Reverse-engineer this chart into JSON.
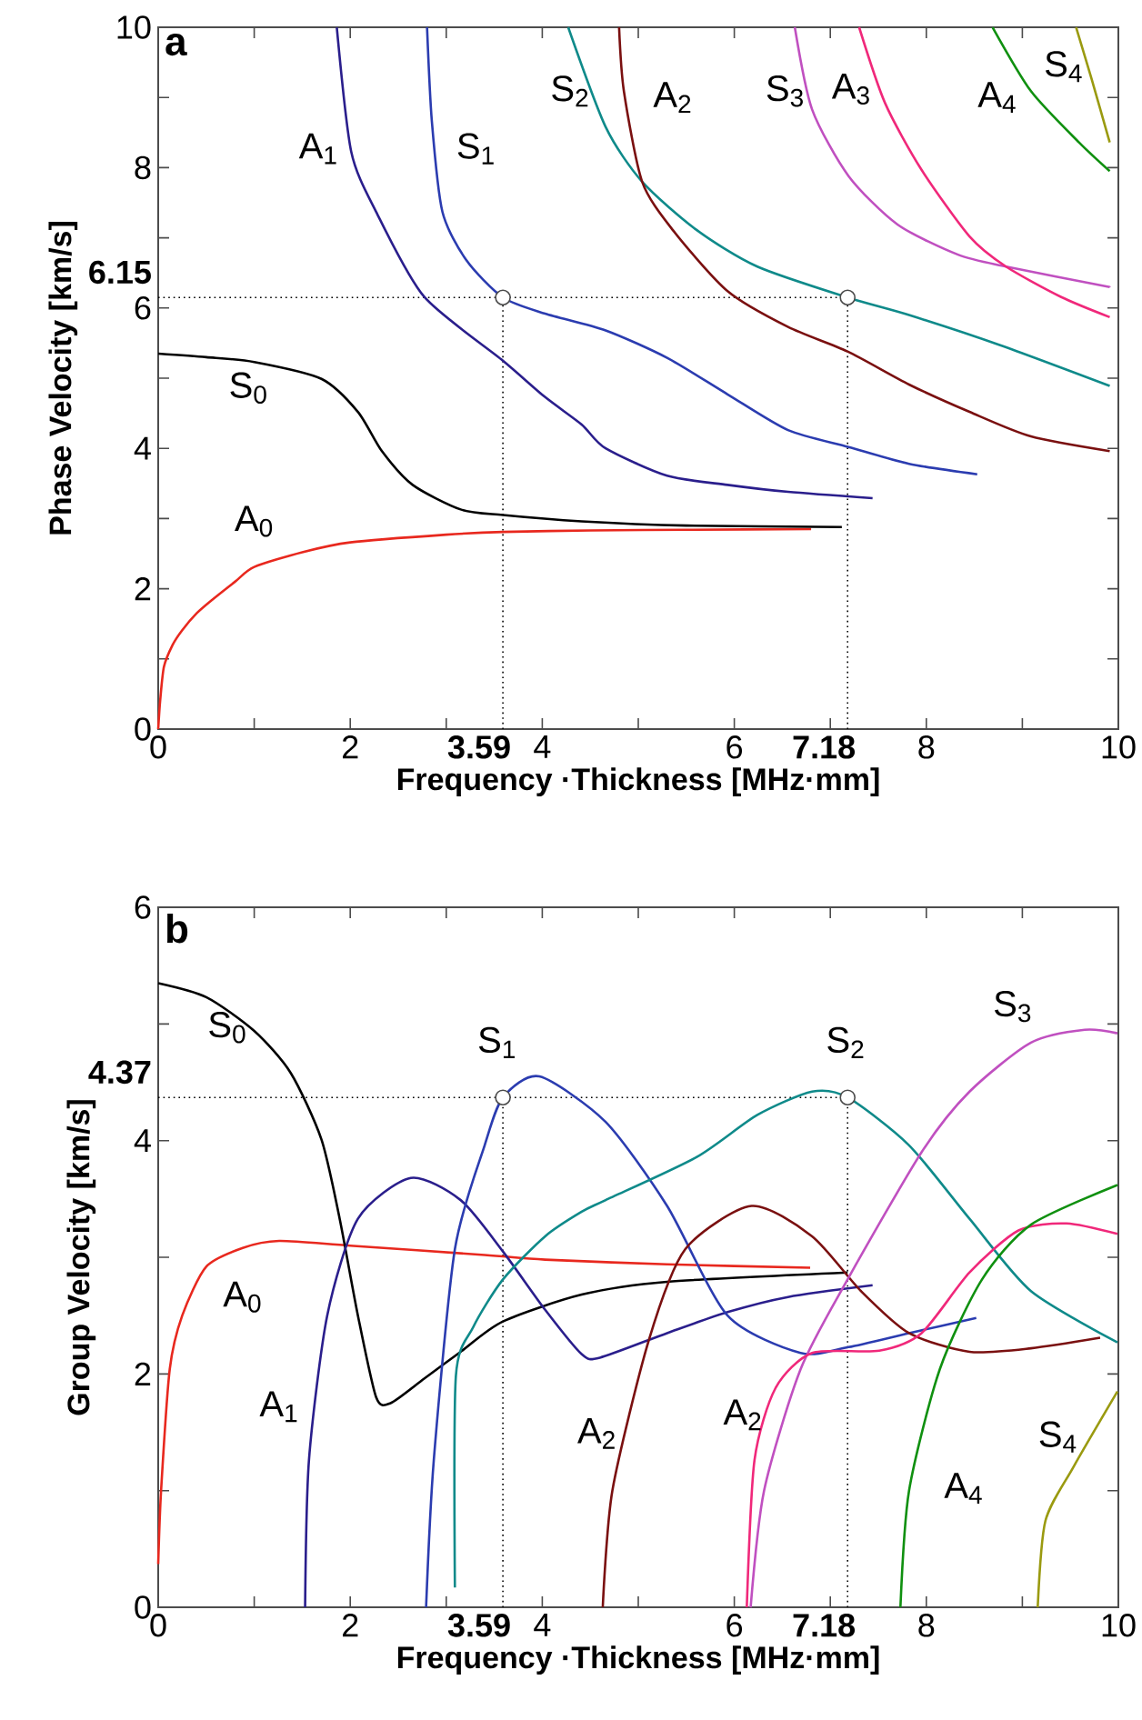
{
  "chart_data": [
    {
      "type": "line",
      "title": "a",
      "xlabel": "Frequency ·Thickness [MHz·mm]",
      "ylabel": "Phase Velocity [km/s]",
      "xlim": [
        0,
        10
      ],
      "ylim": [
        0,
        10
      ],
      "xticks": [
        0,
        {
          "value": 1,
          "label": null
        },
        2,
        {
          "value": 3,
          "label": null
        },
        4,
        {
          "value": 5,
          "label": null
        },
        6,
        {
          "value": 7,
          "label": null
        },
        8,
        {
          "value": 9,
          "label": null
        },
        10
      ],
      "yticks": [
        0,
        {
          "value": 1,
          "label": null
        },
        2,
        {
          "value": 3,
          "label": null
        },
        4,
        {
          "value": 5,
          "label": null
        },
        6,
        {
          "value": 7,
          "label": null
        },
        8,
        {
          "value": 9,
          "label": null
        },
        10
      ],
      "ref_lines": [
        {
          "axis": "x",
          "value": 3.59,
          "label": "3.59",
          "line_style": "dotted",
          "color": "#000000"
        },
        {
          "axis": "x",
          "value": 7.18,
          "label": "7.18",
          "line_style": "dotted",
          "color": "#000000"
        },
        {
          "axis": "y",
          "value": 6.15,
          "label": "6.15",
          "line_style": "dotted",
          "color": "#000000"
        }
      ],
      "series": [
        {
          "name": "A$_{0}$",
          "color": "#e8281e",
          "x": [
            0,
            0.02,
            0.06,
            0.15,
            0.25,
            0.4,
            0.56,
            0.8,
            1.0,
            1.5,
            2,
            3,
            3.59,
            4.5,
            5.5,
            6.8
          ],
          "values": [
            0,
            0.4,
            0.89,
            1.2,
            1.41,
            1.65,
            1.84,
            2.1,
            2.31,
            2.52,
            2.66,
            2.77,
            2.81,
            2.83,
            2.84,
            2.85
          ]
        },
        {
          "name": "S$_{0}$",
          "color": "#000000",
          "x": [
            0,
            0.5,
            1.0,
            1.7,
            2.08,
            2.33,
            2.65,
            3.15,
            3.59,
            4.41,
            5.5,
            7.12
          ],
          "values": [
            5.35,
            5.3,
            5.23,
            4.99,
            4.52,
            3.96,
            3.48,
            3.13,
            3.05,
            2.96,
            2.9,
            2.88
          ]
        },
        {
          "name": "A$_{1}$",
          "color": "#2a1e8c",
          "x": [
            1.86,
            2.01,
            2.27,
            2.77,
            3.59,
            4.03,
            4.41,
            4.66,
            5.3,
            5.93,
            6.56,
            7.44
          ],
          "values": [
            10,
            8.23,
            7.37,
            6.16,
            5.25,
            4.73,
            4.34,
            4.0,
            3.61,
            3.48,
            3.38,
            3.29
          ]
        },
        {
          "name": "S$_{1}$",
          "color": "#2b3cb0",
          "x": [
            2.8,
            2.85,
            2.96,
            3.21,
            3.59,
            4.03,
            4.66,
            5.3,
            5.93,
            6.56,
            7.19,
            7.82,
            8.53
          ],
          "values": [
            10,
            8.66,
            7.37,
            6.68,
            6.15,
            5.92,
            5.68,
            5.29,
            4.77,
            4.26,
            4.02,
            3.78,
            3.63
          ]
        },
        {
          "name": "S$_{2}$",
          "color": "#0f8a8a",
          "x": [
            4.27,
            4.66,
            5.04,
            5.61,
            6.24,
            7.18,
            7.82,
            8.77,
            9.91
          ],
          "values": [
            10,
            8.58,
            7.8,
            7.11,
            6.59,
            6.15,
            5.9,
            5.47,
            4.89
          ]
        },
        {
          "name": "A$_{2}$",
          "color": "#7a1010",
          "x": [
            4.8,
            4.85,
            5.04,
            5.36,
            5.93,
            6.56,
            7.18,
            7.82,
            8.45,
            9.09,
            9.91
          ],
          "values": [
            10,
            9.09,
            7.8,
            7.11,
            6.24,
            5.73,
            5.38,
            4.91,
            4.52,
            4.17,
            3.96
          ]
        },
        {
          "name": "S$_{3}$",
          "color": "#c050c0",
          "x": [
            6.63,
            6.81,
            7.19,
            7.7,
            8.33,
            8.83,
            9.91
          ],
          "values": [
            10,
            8.83,
            7.88,
            7.19,
            6.76,
            6.59,
            6.3
          ]
        },
        {
          "name": "A$_{3}$",
          "color": "#f0287a",
          "x": [
            7.3,
            7.57,
            7.95,
            8.45,
            8.83,
            9.4,
            9.91
          ],
          "values": [
            10,
            8.92,
            7.97,
            7.02,
            6.59,
            6.16,
            5.87
          ]
        },
        {
          "name": "A$_{4}$",
          "color": "#109010",
          "x": [
            8.69,
            9.09,
            9.59,
            9.91
          ],
          "values": [
            10,
            9.09,
            8.36,
            7.95
          ]
        },
        {
          "name": "S$_{4}$",
          "color": "#9a9a10",
          "x": [
            9.56,
            9.72,
            9.91
          ],
          "values": [
            10,
            9.27,
            8.36
          ]
        },
        {
          "type": "scatter",
          "marker": "circle",
          "color": "#ffffff",
          "x": [
            3.59,
            7.18
          ],
          "values": [
            6.15,
            6.15
          ]
        }
      ]
    },
    {
      "type": "line",
      "title": "b",
      "xlabel": "Frequency ·Thickness [MHz·mm]",
      "ylabel": "Group Velocity [km/s]",
      "xlim": [
        0,
        10
      ],
      "ylim": [
        0,
        6
      ],
      "xticks": [
        0,
        {
          "value": 1,
          "label": null
        },
        2,
        {
          "value": 3,
          "label": null
        },
        4,
        {
          "value": 5,
          "label": null
        },
        6,
        {
          "value": 7,
          "label": null
        },
        8,
        {
          "value": 9,
          "label": null
        },
        10
      ],
      "yticks": [
        0,
        {
          "value": 1,
          "label": null
        },
        2,
        {
          "value": 3,
          "label": null
        },
        4,
        {
          "value": 5,
          "label": null
        },
        6
      ],
      "ref_lines": [
        {
          "axis": "x",
          "value": 3.59,
          "label": "3.59",
          "line_style": "dotted",
          "color": "#000000"
        },
        {
          "axis": "x",
          "value": 7.18,
          "label": "7.18",
          "line_style": "dotted",
          "color": "#000000"
        },
        {
          "axis": "y",
          "value": 4.37,
          "label": "4.37",
          "line_style": "dotted",
          "color": "#000000"
        }
      ],
      "series": [
        {
          "name": "A$_{0}$",
          "color": "#e8281e",
          "x": [
            0,
            0.03,
            0.12,
            0.25,
            0.5,
            0.88,
            1.26,
            2.0,
            3.4,
            4.03,
            5.3,
            6.79
          ],
          "values": [
            0.37,
            1.0,
            2.04,
            2.5,
            2.92,
            3.08,
            3.14,
            3.1,
            3.02,
            2.98,
            2.94,
            2.91
          ]
        },
        {
          "name": "S$_{0}$",
          "color": "#000000",
          "x": [
            0,
            0.5,
            1.0,
            1.38,
            1.7,
            1.89,
            2.08,
            2.27,
            2.42,
            2.77,
            3.15,
            3.59,
            4.41,
            5.3,
            7.18
          ],
          "values": [
            5.35,
            5.23,
            4.94,
            4.58,
            4.01,
            3.33,
            2.5,
            1.8,
            1.75,
            1.96,
            2.19,
            2.45,
            2.68,
            2.79,
            2.87
          ]
        },
        {
          "name": "A$_{1}$",
          "color": "#2a1e8c",
          "x": [
            1.53,
            1.57,
            1.76,
            2.08,
            2.63,
            3.15,
            3.59,
            4.03,
            4.41,
            4.6,
            5.3,
            5.93,
            6.56,
            7.44
          ],
          "values": [
            0,
            1.26,
            2.5,
            3.33,
            3.68,
            3.49,
            3.05,
            2.55,
            2.17,
            2.14,
            2.35,
            2.53,
            2.66,
            2.76
          ]
        },
        {
          "name": "S$_{1}$",
          "color": "#2b3cb0",
          "x": [
            2.79,
            2.87,
            3.09,
            3.4,
            3.59,
            3.97,
            4.66,
            5.3,
            5.93,
            6.69,
            7.19,
            7.82,
            8.52
          ],
          "values": [
            0,
            1.26,
            3.07,
            3.96,
            4.37,
            4.55,
            4.16,
            3.44,
            2.5,
            2.18,
            2.23,
            2.35,
            2.48
          ]
        },
        {
          "name": "S$_{2}$",
          "color": "#0f8a8a",
          "x": [
            3.09,
            3.1,
            3.28,
            3.59,
            4.03,
            4.41,
            4.66,
            5.61,
            6.24,
            6.81,
            7.18,
            7.82,
            8.45,
            9.09,
            9.99
          ],
          "values": [
            0.17,
            1.98,
            2.4,
            2.81,
            3.18,
            3.39,
            3.49,
            3.86,
            4.22,
            4.42,
            4.37,
            3.96,
            3.33,
            2.71,
            2.27
          ]
        },
        {
          "name": "A$_{2}$",
          "color": "#7a1010",
          "x": [
            4.63,
            4.73,
            5.11,
            5.49,
            6.18,
            6.81,
            7.32,
            7.82,
            8.45,
            9.09,
            9.81
          ],
          "values": [
            0,
            1.0,
            2.29,
            3.07,
            3.44,
            3.18,
            2.71,
            2.35,
            2.19,
            2.22,
            2.31
          ]
        },
        {
          "name": "S$_{3}$",
          "color": "#c050c0",
          "x": [
            6.17,
            6.31,
            6.69,
            7.18,
            7.95,
            8.45,
            9.09,
            9.65,
            9.99
          ],
          "values": [
            0,
            1.0,
            2.04,
            2.81,
            3.9,
            4.42,
            4.84,
            4.95,
            4.92
          ]
        },
        {
          "name": "A$_{2}$",
          "color": "#f0287a",
          "x": [
            6.13,
            6.21,
            6.43,
            6.81,
            7.51,
            7.95,
            8.45,
            8.96,
            9.46,
            9.99
          ],
          "values": [
            0,
            1.26,
            1.88,
            2.18,
            2.2,
            2.35,
            2.87,
            3.23,
            3.29,
            3.2
          ]
        },
        {
          "name": "A$_{4}$",
          "color": "#109010",
          "x": [
            7.73,
            7.82,
            8.14,
            8.58,
            9.09,
            9.99
          ],
          "values": [
            0,
            1.0,
            2.04,
            2.81,
            3.28,
            3.62
          ]
        },
        {
          "name": "S$_{4}$",
          "color": "#9a9a10",
          "x": [
            9.16,
            9.24,
            9.53,
            9.99
          ],
          "values": [
            0,
            0.74,
            1.2,
            1.85
          ]
        },
        {
          "type": "scatter",
          "marker": "circle",
          "color": "#ffffff",
          "x": [
            3.59,
            7.18
          ],
          "values": [
            4.37,
            4.37
          ]
        }
      ]
    }
  ]
}
